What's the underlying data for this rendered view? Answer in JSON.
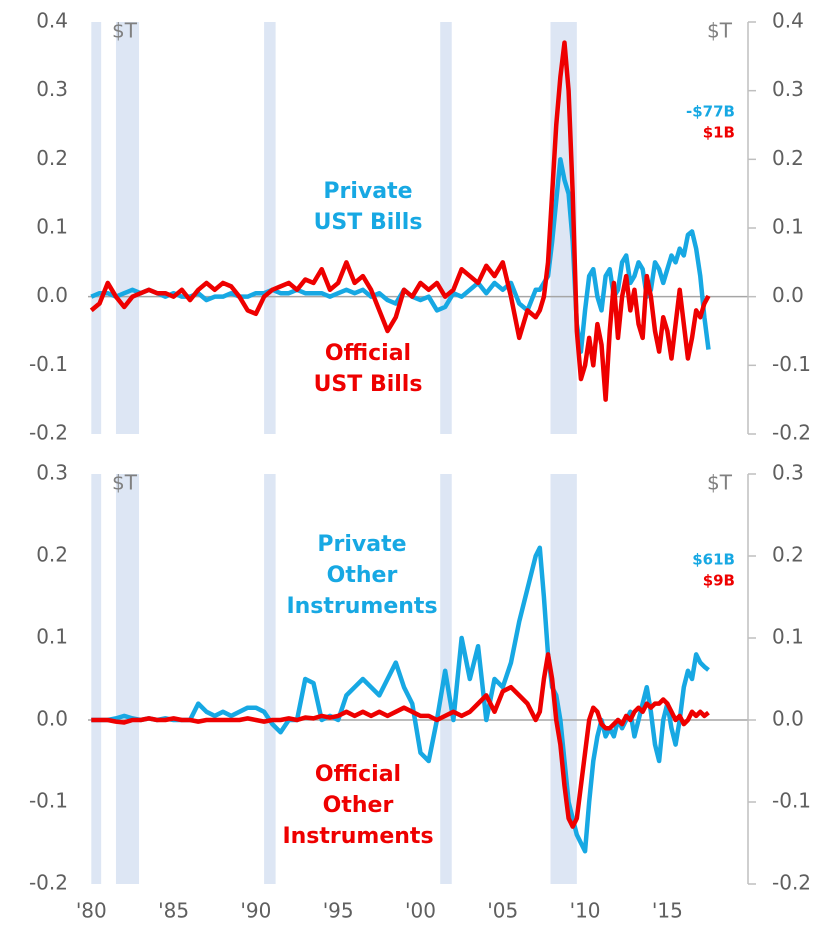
{
  "chart_data": [
    {
      "type": "line",
      "y_unit": "$T",
      "y2_unit": "$T",
      "xlim": [
        1979.8,
        2019.9
      ],
      "ylim": [
        -0.2,
        0.4
      ],
      "y2lim": [
        -0.2,
        0.4
      ],
      "yticks": [
        -0.2,
        -0.1,
        {
          "value": 0,
          "label": "0.0"
        },
        0.1,
        0.2,
        0.3,
        0.4
      ],
      "y2ticks": [
        -0.2,
        -0.1,
        {
          "value": 0,
          "label": "0.0"
        },
        0.1,
        0.2,
        0.3,
        0.4
      ],
      "shaded_periods": [
        [
          1980.0,
          1980.6
        ],
        [
          1981.5,
          1982.9
        ],
        [
          1990.5,
          1991.2
        ],
        [
          2001.2,
          2001.9
        ],
        [
          2007.9,
          2009.5
        ]
      ],
      "shade_color": "#dde6f4",
      "x": [
        1980,
        1980.5,
        1981,
        1981.5,
        1982,
        1982.5,
        1983,
        1983.5,
        1984,
        1984.5,
        1985,
        1985.5,
        1986,
        1986.5,
        1987,
        1987.5,
        1988,
        1988.5,
        1989,
        1989.5,
        1990,
        1990.5,
        1991,
        1991.5,
        1992,
        1992.5,
        1993,
        1993.5,
        1994,
        1994.5,
        1995,
        1995.5,
        1996,
        1996.5,
        1997,
        1997.5,
        1998,
        1998.5,
        1999,
        1999.5,
        2000,
        2000.5,
        2001,
        2001.5,
        2002,
        2002.5,
        2003,
        2003.5,
        2004,
        2004.5,
        2005,
        2005.5,
        2006,
        2006.5,
        2007,
        2007.25,
        2007.5,
        2007.75,
        2008,
        2008.25,
        2008.5,
        2008.75,
        2009,
        2009.25,
        2009.5,
        2009.75,
        2010,
        2010.25,
        2010.5,
        2010.75,
        2011,
        2011.25,
        2011.5,
        2011.75,
        2012,
        2012.25,
        2012.5,
        2012.75,
        2013,
        2013.25,
        2013.5,
        2013.75,
        2014,
        2014.25,
        2014.5,
        2014.75,
        2015,
        2015.25,
        2015.5,
        2015.75,
        2016,
        2016.25,
        2016.5,
        2016.75,
        2017,
        2017.25,
        2017.5
      ],
      "series": [
        {
          "name": "Private UST Bills",
          "label_lines": [
            "Private",
            "UST Bills"
          ],
          "color": "#17a8e3",
          "end_label": "-$77B",
          "values": [
            0,
            0.005,
            0.005,
            0,
            0.005,
            0.01,
            0.005,
            0.01,
            0.005,
            0,
            0.005,
            0,
            0,
            0.005,
            -0.005,
            0,
            0,
            0.005,
            0,
            0,
            0.005,
            0.005,
            0.01,
            0.005,
            0.005,
            0.01,
            0.005,
            0.005,
            0.005,
            0,
            0.005,
            0.01,
            0.005,
            0.01,
            0,
            0.005,
            -0.005,
            -0.01,
            0.01,
            0,
            -0.005,
            0,
            -0.02,
            -0.015,
            0.005,
            0,
            0.01,
            0.02,
            0.005,
            0.02,
            0.01,
            0.02,
            -0.01,
            -0.02,
            0.01,
            0.01,
            0.02,
            0.03,
            0.08,
            0.14,
            0.2,
            0.17,
            0.15,
            0.08,
            -0.04,
            -0.08,
            -0.02,
            0.03,
            0.04,
            0,
            -0.02,
            0.03,
            0.04,
            0,
            0.01,
            0.05,
            0.06,
            0.02,
            0.03,
            0.05,
            0.04,
            0,
            0.01,
            0.05,
            0.04,
            0.02,
            0.04,
            0.06,
            0.05,
            0.07,
            0.06,
            0.09,
            0.095,
            0.07,
            0.03,
            -0.03,
            -0.077
          ]
        },
        {
          "name": "Official UST Bills",
          "label_lines": [
            "Official",
            "UST Bills"
          ],
          "color": "#ee0000",
          "end_label": "$1B",
          "values": [
            -0.02,
            -0.01,
            0.02,
            0,
            -0.015,
            0,
            0.005,
            0.01,
            0.005,
            0.005,
            0,
            0.01,
            -0.005,
            0.01,
            0.02,
            0.01,
            0.02,
            0.015,
            0,
            -0.02,
            -0.025,
            0,
            0.01,
            0.015,
            0.02,
            0.01,
            0.025,
            0.02,
            0.04,
            0.01,
            0.02,
            0.05,
            0.02,
            0.03,
            0.01,
            -0.02,
            -0.05,
            -0.03,
            0.01,
            0,
            0.02,
            0.01,
            0.02,
            0,
            0.01,
            0.04,
            0.03,
            0.02,
            0.045,
            0.03,
            0.05,
            0,
            -0.06,
            -0.02,
            -0.03,
            -0.02,
            0,
            0.05,
            0.15,
            0.25,
            0.32,
            0.37,
            0.3,
            0.15,
            -0.05,
            -0.12,
            -0.1,
            -0.06,
            -0.1,
            -0.04,
            -0.07,
            -0.15,
            -0.05,
            0.02,
            -0.06,
            0,
            0.03,
            -0.02,
            0.01,
            -0.04,
            -0.06,
            0.03,
            0,
            -0.05,
            -0.08,
            -0.03,
            -0.05,
            -0.09,
            -0.04,
            0.01,
            -0.04,
            -0.09,
            -0.06,
            -0.02,
            -0.03,
            -0.01,
            0.001
          ]
        }
      ]
    },
    {
      "type": "line",
      "y_unit": "$T",
      "y2_unit": "$T",
      "xlim": [
        1979.8,
        2019.9
      ],
      "ylim": [
        -0.2,
        0.3
      ],
      "y2lim": [
        -0.2,
        0.3
      ],
      "xticks": [
        {
          "value": 1980,
          "label": "'80"
        },
        {
          "value": 1985,
          "label": "'85"
        },
        {
          "value": 1990,
          "label": "'90"
        },
        {
          "value": 1995,
          "label": "'95"
        },
        {
          "value": 2000,
          "label": "'00"
        },
        {
          "value": 2005,
          "label": "'05"
        },
        {
          "value": 2010,
          "label": "'10"
        },
        {
          "value": 2015,
          "label": "'15"
        }
      ],
      "yticks": [
        -0.2,
        -0.1,
        {
          "value": 0,
          "label": "0.0"
        },
        0.1,
        0.2,
        0.3
      ],
      "y2ticks": [
        -0.2,
        -0.1,
        {
          "value": 0,
          "label": "0.0"
        },
        0.1,
        0.2,
        0.3
      ],
      "shaded_periods": [
        [
          1980.0,
          1980.6
        ],
        [
          1981.5,
          1982.9
        ],
        [
          1990.5,
          1991.2
        ],
        [
          2001.2,
          2001.9
        ],
        [
          2007.9,
          2009.5
        ]
      ],
      "shade_color": "#dde6f4",
      "x": [
        1980,
        1980.5,
        1981,
        1981.5,
        1982,
        1982.5,
        1983,
        1983.5,
        1984,
        1984.5,
        1985,
        1985.5,
        1986,
        1986.5,
        1987,
        1987.5,
        1988,
        1988.5,
        1989,
        1989.5,
        1990,
        1990.5,
        1991,
        1991.5,
        1992,
        1992.5,
        1993,
        1993.5,
        1994,
        1994.5,
        1995,
        1995.5,
        1996,
        1996.5,
        1997,
        1997.5,
        1998,
        1998.5,
        1999,
        1999.5,
        2000,
        2000.5,
        2001,
        2001.5,
        2002,
        2002.5,
        2003,
        2003.5,
        2004,
        2004.5,
        2005,
        2005.5,
        2006,
        2006.5,
        2007,
        2007.25,
        2007.5,
        2007.75,
        2008,
        2008.25,
        2008.5,
        2008.75,
        2009,
        2009.25,
        2009.5,
        2009.75,
        2010,
        2010.25,
        2010.5,
        2010.75,
        2011,
        2011.25,
        2011.5,
        2011.75,
        2012,
        2012.25,
        2012.5,
        2012.75,
        2013,
        2013.25,
        2013.5,
        2013.75,
        2014,
        2014.25,
        2014.5,
        2014.75,
        2015,
        2015.25,
        2015.5,
        2015.75,
        2016,
        2016.25,
        2016.5,
        2016.75,
        2017,
        2017.25,
        2017.5
      ],
      "series": [
        {
          "name": "Private Other Instruments",
          "label_lines": [
            "Private",
            "Other",
            "Instruments"
          ],
          "color": "#17a8e3",
          "end_label": "$61B",
          "values": [
            0,
            0,
            0,
            0.002,
            0.005,
            0.002,
            0,
            0.002,
            0,
            0.002,
            0,
            0,
            0,
            0.02,
            0.01,
            0.005,
            0.01,
            0.005,
            0.01,
            0.015,
            0.015,
            0.01,
            -0.005,
            -0.015,
            0,
            0,
            0.05,
            0.045,
            0,
            0.005,
            0,
            0.03,
            0.04,
            0.05,
            0.04,
            0.03,
            0.05,
            0.07,
            0.04,
            0.02,
            -0.04,
            -0.05,
            0,
            0.06,
            0,
            0.1,
            0.05,
            0.09,
            0,
            0.05,
            0.04,
            0.07,
            0.12,
            0.16,
            0.2,
            0.21,
            0.15,
            0.08,
            0.04,
            0.03,
            0,
            -0.05,
            -0.1,
            -0.12,
            -0.14,
            -0.15,
            -0.16,
            -0.1,
            -0.05,
            -0.02,
            0,
            -0.02,
            -0.01,
            -0.02,
            0,
            -0.01,
            0,
            0.01,
            -0.02,
            0,
            0.02,
            0.04,
            0.01,
            -0.03,
            -0.05,
            0,
            0.02,
            -0.01,
            -0.03,
            0,
            0.04,
            0.06,
            0.05,
            0.08,
            0.07,
            0.065,
            0.061
          ]
        },
        {
          "name": "Official Other Instruments",
          "label_lines": [
            "Official",
            "Other",
            "Instruments"
          ],
          "color": "#ee0000",
          "end_label": "$9B",
          "values": [
            0,
            0,
            0,
            -0.002,
            -0.003,
            0,
            0,
            0.002,
            0,
            0,
            0.002,
            0,
            0,
            -0.002,
            0,
            0,
            0,
            0,
            0,
            0.002,
            0,
            -0.002,
            0,
            0,
            0.002,
            0,
            0.003,
            0.002,
            0.005,
            0.003,
            0.005,
            0.01,
            0.005,
            0.01,
            0.005,
            0.01,
            0.005,
            0.01,
            0.015,
            0.01,
            0.005,
            0.005,
            0,
            0.005,
            0.01,
            0.005,
            0.01,
            0.02,
            0.03,
            0.01,
            0.035,
            0.04,
            0.03,
            0.02,
            0,
            0.01,
            0.05,
            0.08,
            0.05,
            0,
            -0.03,
            -0.08,
            -0.12,
            -0.13,
            -0.12,
            -0.08,
            -0.04,
            0,
            0.015,
            0.01,
            -0.005,
            -0.01,
            -0.01,
            -0.005,
            0,
            -0.005,
            0.005,
            0,
            0.01,
            0.015,
            0.01,
            0.02,
            0.015,
            0.02,
            0.02,
            0.025,
            0.02,
            0.01,
            0,
            0.005,
            -0.005,
            0,
            0.01,
            0.005,
            0.01,
            0.005,
            0.009
          ]
        }
      ]
    }
  ]
}
